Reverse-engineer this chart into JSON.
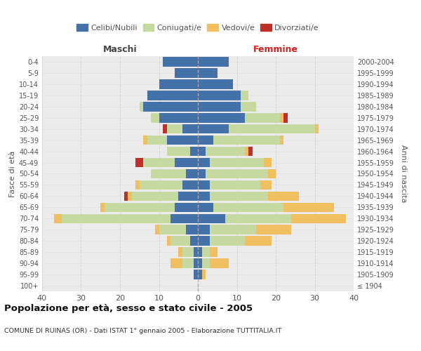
{
  "age_groups": [
    "100+",
    "95-99",
    "90-94",
    "85-89",
    "80-84",
    "75-79",
    "70-74",
    "65-69",
    "60-64",
    "55-59",
    "50-54",
    "45-49",
    "40-44",
    "35-39",
    "30-34",
    "25-29",
    "20-24",
    "15-19",
    "10-14",
    "5-9",
    "0-4"
  ],
  "birth_years": [
    "≤ 1904",
    "1905-1909",
    "1910-1914",
    "1915-1919",
    "1920-1924",
    "1925-1929",
    "1930-1934",
    "1935-1939",
    "1940-1944",
    "1945-1949",
    "1950-1954",
    "1955-1959",
    "1960-1964",
    "1965-1969",
    "1970-1974",
    "1975-1979",
    "1980-1984",
    "1985-1989",
    "1990-1994",
    "1995-1999",
    "2000-2004"
  ],
  "maschi": {
    "celibi": [
      0,
      1,
      1,
      1,
      2,
      3,
      7,
      6,
      5,
      4,
      3,
      6,
      2,
      8,
      4,
      10,
      14,
      13,
      10,
      6,
      9
    ],
    "coniugati": [
      0,
      0,
      3,
      3,
      5,
      7,
      28,
      18,
      12,
      11,
      9,
      8,
      6,
      5,
      4,
      2,
      1,
      0,
      0,
      0,
      0
    ],
    "vedovi": [
      0,
      0,
      3,
      1,
      1,
      1,
      2,
      1,
      1,
      1,
      0,
      0,
      0,
      1,
      0,
      0,
      0,
      0,
      0,
      0,
      0
    ],
    "divorziati": [
      0,
      0,
      0,
      0,
      0,
      0,
      0,
      0,
      1,
      0,
      0,
      2,
      0,
      0,
      1,
      0,
      0,
      0,
      0,
      0,
      0
    ]
  },
  "femmine": {
    "nubili": [
      0,
      1,
      1,
      1,
      3,
      3,
      7,
      4,
      3,
      3,
      2,
      3,
      2,
      4,
      8,
      12,
      11,
      11,
      9,
      5,
      8
    ],
    "coniugate": [
      0,
      0,
      2,
      2,
      9,
      12,
      17,
      18,
      15,
      13,
      16,
      14,
      10,
      17,
      22,
      9,
      4,
      2,
      0,
      0,
      0
    ],
    "vedove": [
      0,
      1,
      5,
      2,
      7,
      9,
      14,
      13,
      8,
      3,
      2,
      2,
      1,
      1,
      1,
      1,
      0,
      0,
      0,
      0,
      0
    ],
    "divorziate": [
      0,
      0,
      0,
      0,
      0,
      0,
      0,
      0,
      0,
      0,
      0,
      0,
      1,
      0,
      0,
      1,
      0,
      0,
      0,
      0,
      0
    ]
  },
  "colors": {
    "celibi": "#4472a8",
    "coniugati": "#c5d9a0",
    "vedovi": "#f0c060",
    "divorziati": "#c0302a"
  },
  "title": "Popolazione per età, sesso e stato civile - 2005",
  "subtitle": "COMUNE DI RUINAS (OR) - Dati ISTAT 1° gennaio 2005 - Elaborazione TUTTITALIA.IT",
  "xlabel_maschi": "Maschi",
  "xlabel_femmine": "Femmine",
  "ylabel_left": "Fasce di età",
  "ylabel_right": "Anni di nascita",
  "xlim": 40,
  "background_color": "#ffffff",
  "plot_bg": "#ebebeb",
  "grid_color": "#cccccc"
}
